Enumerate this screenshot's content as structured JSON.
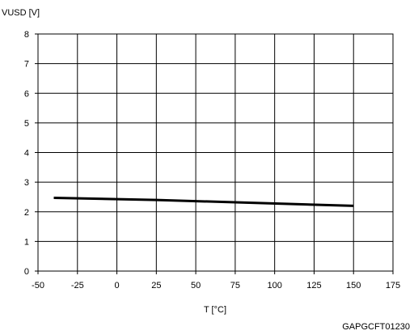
{
  "chart_data": {
    "type": "line",
    "title": "",
    "xlabel": "T [°C]",
    "ylabel": "VUSD [V]",
    "figure_id": "GAPGCFT01230",
    "xlim": [
      -50,
      175
    ],
    "ylim": [
      0,
      8
    ],
    "xticks": [
      -50,
      -25,
      0,
      25,
      50,
      75,
      100,
      125,
      150,
      175
    ],
    "yticks": [
      0,
      1,
      2,
      3,
      4,
      5,
      6,
      7,
      8
    ],
    "grid": true,
    "legend": "none",
    "series": [
      {
        "color": "#000000",
        "x": [
          -40,
          25,
          150
        ],
        "y": [
          2.47,
          2.4,
          2.2
        ]
      }
    ]
  }
}
